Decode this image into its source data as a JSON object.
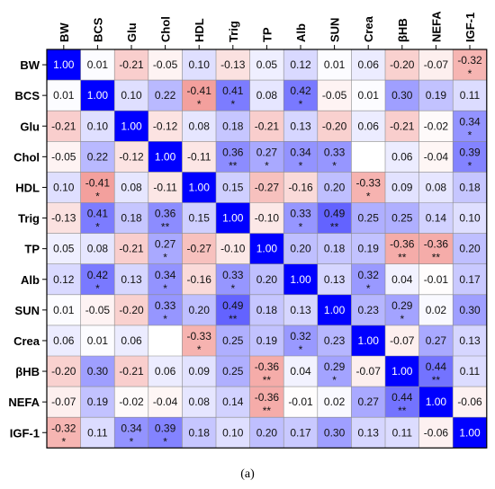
{
  "chart_data": {
    "type": "heatmap",
    "variables": [
      "BW",
      "BCS",
      "Glu",
      "Chol",
      "HDL",
      "Trig",
      "TP",
      "Alb",
      "SUN",
      "Crea",
      "βHB",
      "NEFA",
      "IGF-1"
    ],
    "values": [
      [
        1.0,
        0.01,
        -0.21,
        -0.05,
        0.1,
        -0.13,
        0.05,
        0.12,
        0.01,
        0.06,
        -0.2,
        -0.07,
        -0.32
      ],
      [
        0.01,
        1.0,
        0.1,
        0.22,
        -0.41,
        0.41,
        0.08,
        0.42,
        -0.05,
        0.01,
        0.3,
        0.19,
        0.11
      ],
      [
        -0.21,
        0.1,
        1.0,
        -0.12,
        0.08,
        0.18,
        -0.21,
        0.13,
        -0.2,
        0.06,
        -0.21,
        -0.02,
        0.34
      ],
      [
        -0.05,
        0.22,
        -0.12,
        1.0,
        -0.11,
        0.36,
        0.27,
        0.34,
        0.33,
        null,
        0.06,
        -0.04,
        0.39
      ],
      [
        0.1,
        -0.41,
        0.08,
        -0.11,
        1.0,
        0.15,
        -0.27,
        -0.16,
        0.2,
        -0.33,
        0.09,
        0.08,
        0.18
      ],
      [
        -0.13,
        0.41,
        0.18,
        0.36,
        0.15,
        1.0,
        -0.1,
        0.33,
        0.49,
        0.25,
        0.25,
        0.14,
        0.1
      ],
      [
        0.05,
        0.08,
        -0.21,
        0.27,
        -0.27,
        -0.1,
        1.0,
        0.2,
        0.18,
        0.19,
        -0.36,
        -0.36,
        0.2
      ],
      [
        0.12,
        0.42,
        0.13,
        0.34,
        -0.16,
        0.33,
        0.2,
        1.0,
        0.13,
        0.32,
        0.04,
        -0.01,
        0.17
      ],
      [
        0.01,
        -0.05,
        -0.2,
        0.33,
        0.2,
        0.49,
        0.18,
        0.13,
        1.0,
        0.23,
        0.29,
        0.02,
        0.3
      ],
      [
        0.06,
        0.01,
        0.06,
        null,
        -0.33,
        0.25,
        0.19,
        0.32,
        0.23,
        1.0,
        -0.07,
        0.27,
        0.13
      ],
      [
        -0.2,
        0.3,
        -0.21,
        0.06,
        0.09,
        0.25,
        -0.36,
        0.04,
        0.29,
        -0.07,
        1.0,
        0.44,
        0.11
      ],
      [
        -0.07,
        0.19,
        -0.02,
        -0.04,
        0.08,
        0.14,
        -0.36,
        -0.01,
        0.02,
        0.27,
        0.44,
        1.0,
        -0.06
      ],
      [
        -0.32,
        0.11,
        0.34,
        0.39,
        0.18,
        0.1,
        0.2,
        0.17,
        0.3,
        0.13,
        0.11,
        -0.06,
        1.0
      ]
    ],
    "significance": [
      [
        "",
        "",
        "",
        "",
        "",
        "",
        "",
        "",
        "",
        "",
        "",
        "",
        "*"
      ],
      [
        "",
        "",
        "",
        "",
        "*",
        "*",
        "",
        "*",
        "",
        "",
        "",
        "",
        ""
      ],
      [
        "",
        "",
        "",
        "",
        "",
        "",
        "",
        "",
        "",
        "",
        "",
        "",
        "*"
      ],
      [
        "",
        "",
        "",
        "",
        "",
        "**",
        "*",
        "*",
        "*",
        "",
        "",
        "",
        "*"
      ],
      [
        "",
        "*",
        "",
        "",
        "",
        "",
        "",
        "",
        "",
        "*",
        "",
        "",
        ""
      ],
      [
        "",
        "*",
        "",
        "**",
        "",
        "",
        "",
        "*",
        "**",
        "",
        "",
        "",
        ""
      ],
      [
        "",
        "",
        "",
        "*",
        "",
        "",
        "",
        "",
        "",
        "",
        "**",
        "**",
        ""
      ],
      [
        "",
        "*",
        "",
        "*",
        "",
        "*",
        "",
        "",
        "",
        "*",
        "",
        "",
        ""
      ],
      [
        "",
        "",
        "",
        "*",
        "",
        "**",
        "",
        "",
        "",
        "",
        "*",
        "",
        ""
      ],
      [
        "",
        "",
        "",
        "",
        "*",
        "",
        "",
        "*",
        "",
        "",
        "",
        "",
        ""
      ],
      [
        "",
        "",
        "",
        "",
        "",
        "",
        "**",
        "",
        "*",
        "",
        "",
        "**",
        ""
      ],
      [
        "",
        "",
        "",
        "",
        "",
        "",
        "**",
        "",
        "",
        "",
        "**",
        "",
        ""
      ],
      [
        "*",
        "",
        "*",
        "*",
        "",
        "",
        "",
        "",
        "",
        "",
        "",
        "",
        ""
      ]
    ],
    "colors": {
      "positive": "#0000ff",
      "negative": "#e8463f",
      "diagonal": "#0000ff",
      "zero": "#ffffff"
    },
    "color_range": [
      -1,
      1
    ],
    "title": "",
    "legend": "none"
  },
  "panel_label": "(a)"
}
